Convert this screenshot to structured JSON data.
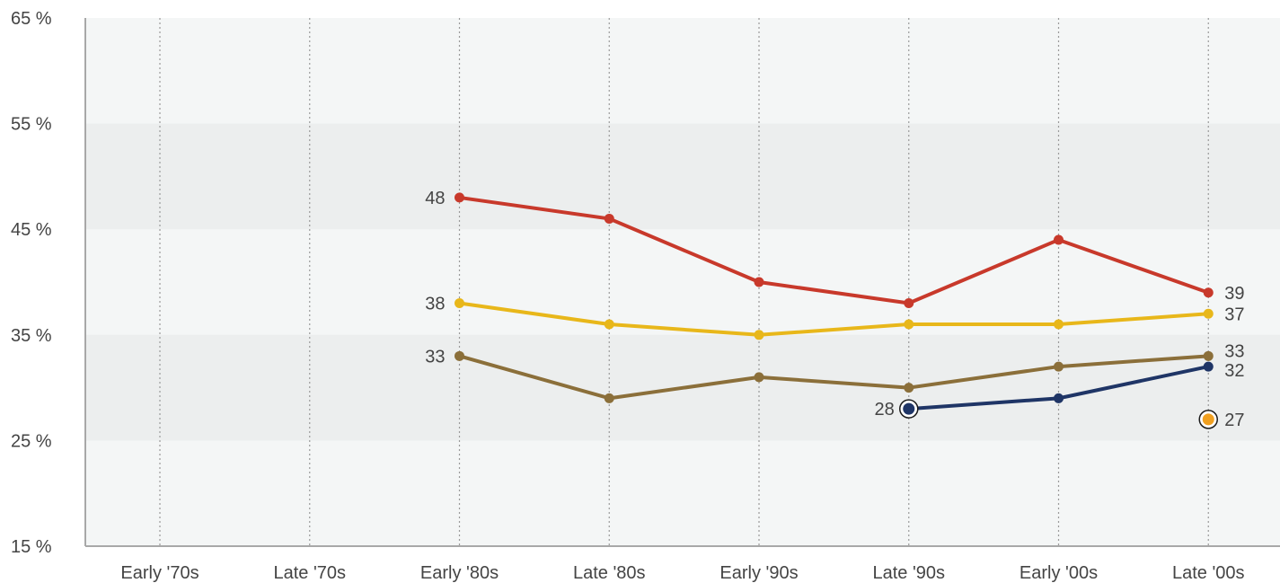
{
  "chart_data": {
    "type": "line",
    "categories": [
      "Early '70s",
      "Late '70s",
      "Early '80s",
      "Late '80s",
      "Early '90s",
      "Late '90s",
      "Early '00s",
      "Late '00s"
    ],
    "y_ticks": [
      "15 %",
      "25 %",
      "35 %",
      "45 %",
      "55 %",
      "65 %"
    ],
    "ylim": [
      15,
      65
    ],
    "grid": "vertical dotted lines at categories; alternating horizontal bands",
    "legend": "none",
    "series": [
      {
        "color": "#c8392b",
        "values": [
          null,
          null,
          48,
          46,
          40,
          38,
          44,
          39
        ],
        "labels": [
          {
            "index": 2,
            "text": "48",
            "side": "left"
          },
          {
            "index": 7,
            "text": "39",
            "side": "right"
          }
        ]
      },
      {
        "color": "#e8b71a",
        "values": [
          null,
          null,
          38,
          36,
          35,
          36,
          36,
          37
        ],
        "labels": [
          {
            "index": 2,
            "text": "38",
            "side": "left"
          },
          {
            "index": 7,
            "text": "37",
            "side": "right"
          }
        ]
      },
      {
        "color": "#8b6f3a",
        "values": [
          null,
          null,
          33,
          29,
          31,
          30,
          32,
          33
        ],
        "labels": [
          {
            "index": 2,
            "text": "33",
            "side": "left"
          },
          {
            "index": 7,
            "text": "33",
            "side": "right"
          }
        ]
      },
      {
        "color": "#1f3566",
        "values": [
          null,
          null,
          null,
          null,
          null,
          28,
          29,
          32
        ],
        "ringed_index": 5,
        "labels": [
          {
            "index": 5,
            "text": "28",
            "side": "left"
          },
          {
            "index": 7,
            "text": "32",
            "side": "right"
          }
        ]
      },
      {
        "color": "#f0a020",
        "values": [
          null,
          null,
          null,
          null,
          null,
          null,
          null,
          27
        ],
        "ringed_index": 7,
        "labels": [
          {
            "index": 7,
            "text": "27",
            "side": "right"
          }
        ]
      }
    ]
  }
}
